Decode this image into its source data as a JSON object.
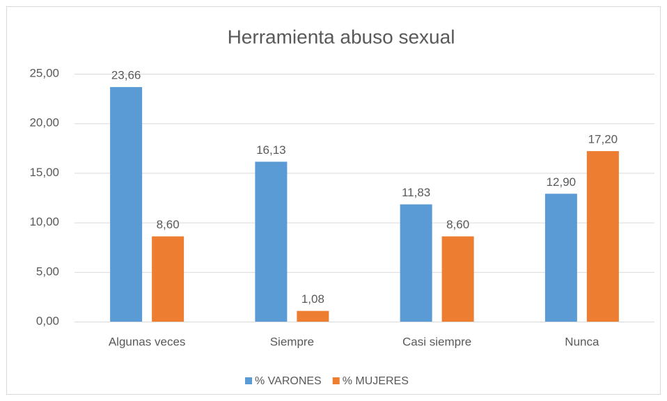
{
  "chart_data": {
    "type": "bar",
    "title": "Herramienta abuso sexual",
    "categories": [
      "Algunas veces",
      "Siempre",
      "Casi siempre",
      "Nunca"
    ],
    "series": [
      {
        "name": "% VARONES",
        "color": "#5b9bd5",
        "values": [
          23.66,
          16.13,
          11.83,
          12.9
        ],
        "value_labels": [
          "23,66",
          "16,13",
          "11,83",
          "12,90"
        ]
      },
      {
        "name": "% MUJERES",
        "color": "#ed7d31",
        "values": [
          8.6,
          1.08,
          8.6,
          17.2
        ],
        "value_labels": [
          "8,60",
          "1,08",
          "8,60",
          "17,20"
        ]
      }
    ],
    "ylim": [
      0,
      25
    ],
    "yticks": [
      {
        "value": 0,
        "label": "0,00"
      },
      {
        "value": 5,
        "label": "5,00"
      },
      {
        "value": 10,
        "label": "10,00"
      },
      {
        "value": 15,
        "label": "15,00"
      },
      {
        "value": 20,
        "label": "20,00"
      },
      {
        "value": 25,
        "label": "25,00"
      }
    ],
    "grid": true,
    "legend": "bottom"
  }
}
